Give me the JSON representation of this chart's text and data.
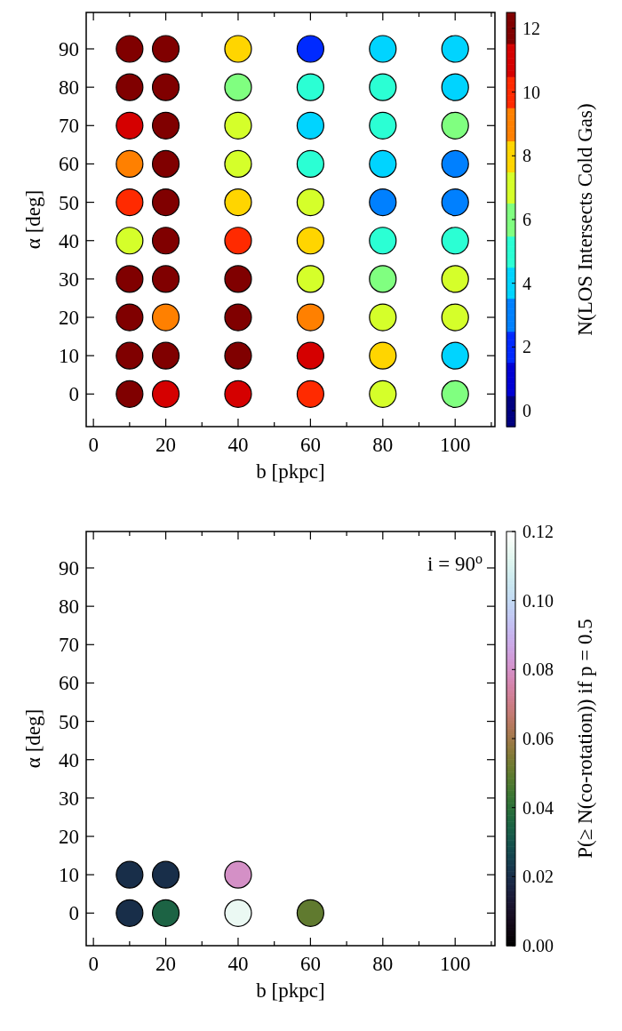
{
  "chart_data": [
    {
      "type": "scatter",
      "xlabel": "b [pkpc]",
      "ylabel": "α [deg]",
      "clabel": "N(LOS Intersects Cold Gas)",
      "marker": "circle",
      "xlim": [
        -2,
        111
      ],
      "ylim": [
        -8.5,
        99.5
      ],
      "xticks": [
        0,
        {
          "value": 10,
          "label": null
        },
        20,
        {
          "value": 30,
          "label": null
        },
        40,
        {
          "value": 50,
          "label": null
        },
        60,
        {
          "value": 70,
          "label": null
        },
        80,
        {
          "value": 90,
          "label": null
        },
        100,
        {
          "value": 110,
          "label": null
        }
      ],
      "yticks": [
        0,
        10,
        20,
        30,
        40,
        50,
        60,
        70,
        80,
        90
      ],
      "clim": [
        -0.5,
        12.5
      ],
      "cticks": [
        0,
        2,
        4,
        6,
        8,
        10,
        12
      ],
      "x": [
        10,
        20,
        40,
        60,
        80,
        100,
        10,
        20,
        40,
        60,
        80,
        100,
        10,
        20,
        40,
        60,
        80,
        100,
        10,
        20,
        40,
        60,
        80,
        100,
        10,
        20,
        40,
        60,
        80,
        100,
        10,
        20,
        40,
        60,
        80,
        100,
        10,
        20,
        40,
        60,
        80,
        100,
        10,
        20,
        40,
        60,
        80,
        100,
        10,
        20,
        40,
        60,
        80,
        100,
        10,
        20,
        40,
        60,
        80,
        100
      ],
      "values": [
        90,
        90,
        90,
        90,
        90,
        90,
        80,
        80,
        80,
        80,
        80,
        80,
        70,
        70,
        70,
        70,
        70,
        70,
        60,
        60,
        60,
        60,
        60,
        60,
        50,
        50,
        50,
        50,
        50,
        50,
        40,
        40,
        40,
        40,
        40,
        40,
        30,
        30,
        30,
        30,
        30,
        30,
        20,
        20,
        20,
        20,
        20,
        20,
        10,
        10,
        10,
        10,
        10,
        10,
        0,
        0,
        0,
        0,
        0,
        0
      ],
      "cvalues": [
        12,
        12,
        8,
        2,
        4,
        4,
        12,
        12,
        6,
        5,
        5,
        4,
        11,
        12,
        7,
        4,
        5,
        6,
        9,
        12,
        7,
        5,
        4,
        3,
        10,
        12,
        8,
        7,
        3,
        3,
        7,
        12,
        10,
        8,
        5,
        5,
        12,
        12,
        12,
        7,
        6,
        7,
        12,
        9,
        12,
        9,
        7,
        7,
        12,
        12,
        12,
        11,
        8,
        4,
        12,
        11,
        11,
        10,
        7,
        6
      ]
    },
    {
      "type": "scatter",
      "xlabel": "b [pkpc]",
      "ylabel": "α [deg]",
      "clabel": "P(≥ N(co-rotation)) if p = 0.5",
      "marker": "circle",
      "annotations": [
        "i = 90$^{o}$"
      ],
      "xlim": [
        -2,
        111
      ],
      "ylim": [
        -8.5,
        99.5
      ],
      "xticks": [
        0,
        {
          "value": 10,
          "label": null
        },
        20,
        {
          "value": 30,
          "label": null
        },
        40,
        {
          "value": 50,
          "label": null
        },
        60,
        {
          "value": 70,
          "label": null
        },
        80,
        {
          "value": 90,
          "label": null
        },
        100,
        {
          "value": 110,
          "label": null
        }
      ],
      "yticks": [
        0,
        10,
        20,
        30,
        40,
        50,
        60,
        70,
        80,
        90
      ],
      "clim": [
        0,
        0.12
      ],
      "cticks": [
        {
          "value": 0,
          "label": "0.00"
        },
        {
          "value": 0.02,
          "label": "0.02"
        },
        {
          "value": 0.04,
          "label": "0.04"
        },
        {
          "value": 0.06,
          "label": "0.06"
        },
        {
          "value": 0.08,
          "label": "0.08"
        },
        {
          "value": 0.1,
          "label": "0.10"
        },
        {
          "value": 0.12,
          "label": "0.12"
        }
      ],
      "x": [
        10,
        20,
        40,
        10,
        20,
        40,
        60
      ],
      "values": [
        10,
        10,
        10,
        0,
        0,
        0,
        0
      ],
      "cvalues": [
        0.02,
        0.02,
        0.08,
        0.02,
        0.035,
        0.115,
        0.05
      ]
    }
  ]
}
